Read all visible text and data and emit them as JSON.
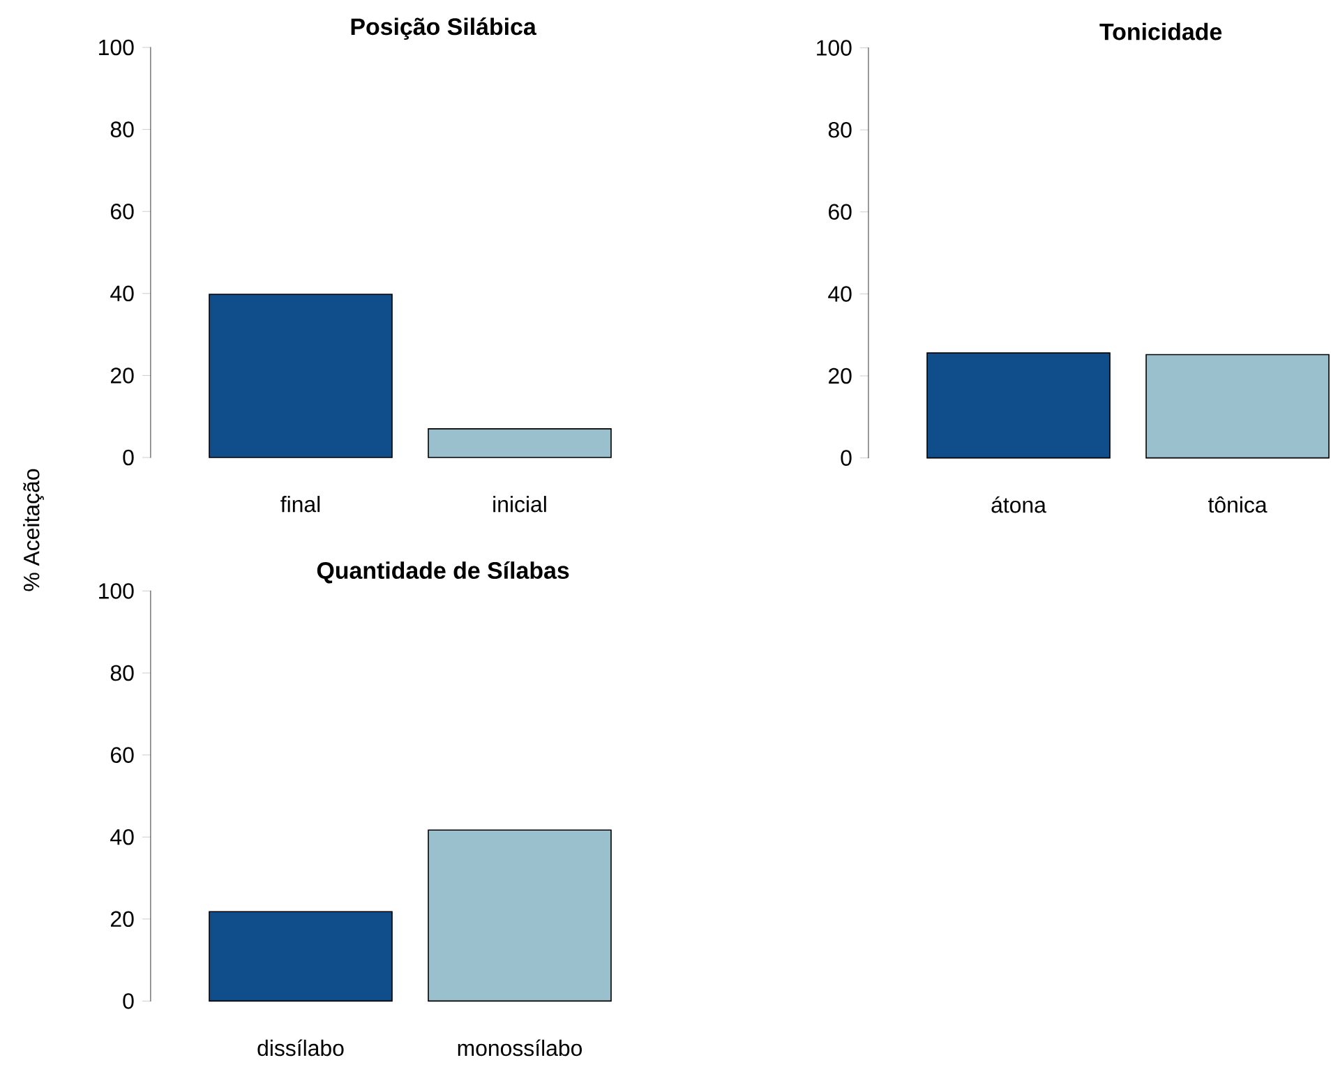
{
  "chart_data": [
    {
      "type": "bar",
      "title": "Posição Silábica",
      "ylabel": "% Aceitação",
      "categories": [
        "final",
        "inicial"
      ],
      "values": [
        39.8,
        7.0
      ],
      "colors": [
        "#104e8b",
        "#9ac0cd"
      ],
      "ylim": [
        0,
        100
      ],
      "yticks": [
        0,
        20,
        40,
        60,
        80,
        100
      ]
    },
    {
      "type": "bar",
      "title": "Tonicidade",
      "categories": [
        "átona",
        "tônica"
      ],
      "values": [
        25.6,
        25.2
      ],
      "colors": [
        "#104e8b",
        "#9ac0cd"
      ],
      "ylim": [
        0,
        100
      ],
      "yticks": [
        0,
        20,
        40,
        60,
        80,
        100
      ]
    },
    {
      "type": "bar",
      "title": "Quantidade de Sílabas",
      "categories": [
        "dissílabo",
        "monossílabo"
      ],
      "values": [
        21.8,
        41.7
      ],
      "colors": [
        "#104e8b",
        "#9ac0cd"
      ],
      "ylim": [
        0,
        100
      ],
      "yticks": [
        0,
        20,
        40,
        60,
        80,
        100
      ]
    }
  ]
}
